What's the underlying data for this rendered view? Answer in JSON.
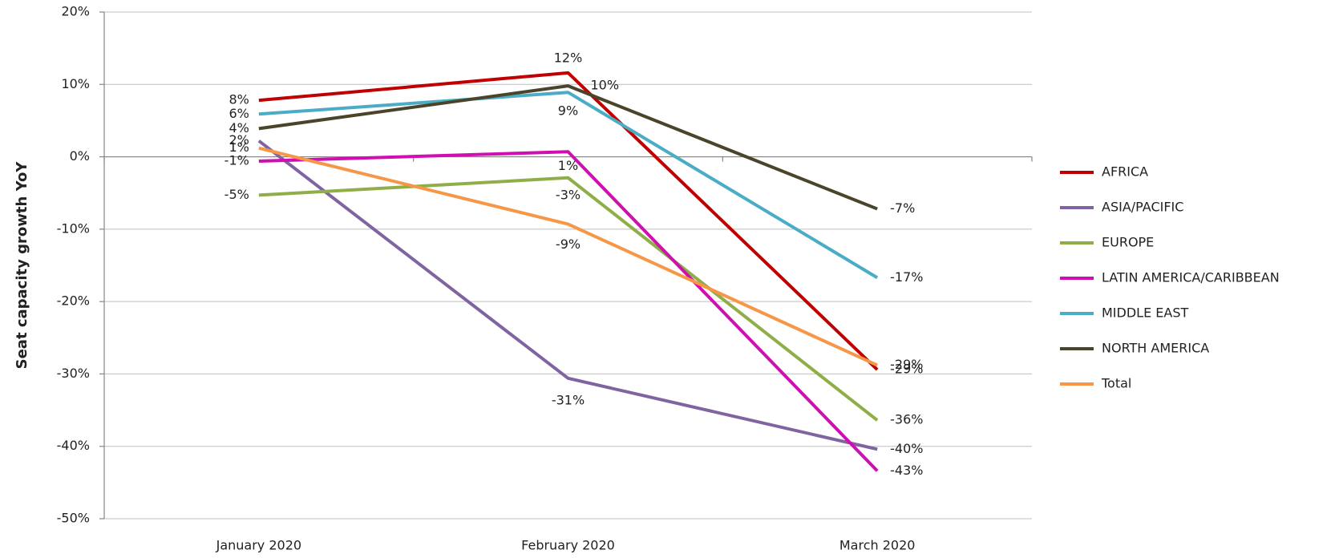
{
  "chart_data": {
    "type": "line",
    "y_label": "Seat capacity growth YoY",
    "categories": [
      "January 2020",
      "February 2020",
      "March 2020"
    ],
    "ylim": [
      -50,
      20
    ],
    "yticks": [
      {
        "value": -50,
        "label": "-50%"
      },
      {
        "value": -40,
        "label": "-40%"
      },
      {
        "value": -30,
        "label": "-30%"
      },
      {
        "value": -20,
        "label": "-20%"
      },
      {
        "value": -10,
        "label": "-10%"
      },
      {
        "value": 0,
        "label": "0%"
      },
      {
        "value": 10,
        "label": "10%"
      },
      {
        "value": 20,
        "label": "20%"
      }
    ],
    "grid": true,
    "legend": "right",
    "series": [
      {
        "name": "AFRICA",
        "color": "#c00000",
        "values": [
          7.8,
          11.6,
          -29.4
        ],
        "value_labels": [
          "8%",
          "12%",
          "-29%"
        ]
      },
      {
        "name": "ASIA/PACIFIC",
        "color": "#8064a2",
        "values": [
          2.2,
          -30.6,
          -40.4
        ],
        "value_labels": [
          "2%",
          "-31%",
          "-40%"
        ]
      },
      {
        "name": "EUROPE",
        "color": "#8fae47",
        "values": [
          -5.3,
          -2.9,
          -36.4
        ],
        "value_labels": [
          "-5%",
          "-3%",
          "-36%"
        ]
      },
      {
        "name": "LATIN AMERICA/CARIBBEAN",
        "color": "#d00fb0",
        "values": [
          -0.6,
          0.7,
          -43.4
        ],
        "value_labels": [
          "-1%",
          "1%",
          "-43%"
        ]
      },
      {
        "name": "MIDDLE EAST",
        "color": "#4bacc6",
        "values": [
          5.9,
          8.9,
          -16.7
        ],
        "value_labels": [
          "6%",
          "9%",
          "-17%"
        ]
      },
      {
        "name": "NORTH AMERICA",
        "color": "#4a452a",
        "values": [
          3.9,
          9.8,
          -7.2
        ],
        "value_labels": [
          "4%",
          "10%",
          "-7%"
        ]
      },
      {
        "name": "Total",
        "color": "#f79646",
        "values": [
          1.2,
          -9.3,
          -28.8
        ],
        "value_labels": [
          "1%",
          "-9%",
          "-29%"
        ]
      }
    ]
  }
}
